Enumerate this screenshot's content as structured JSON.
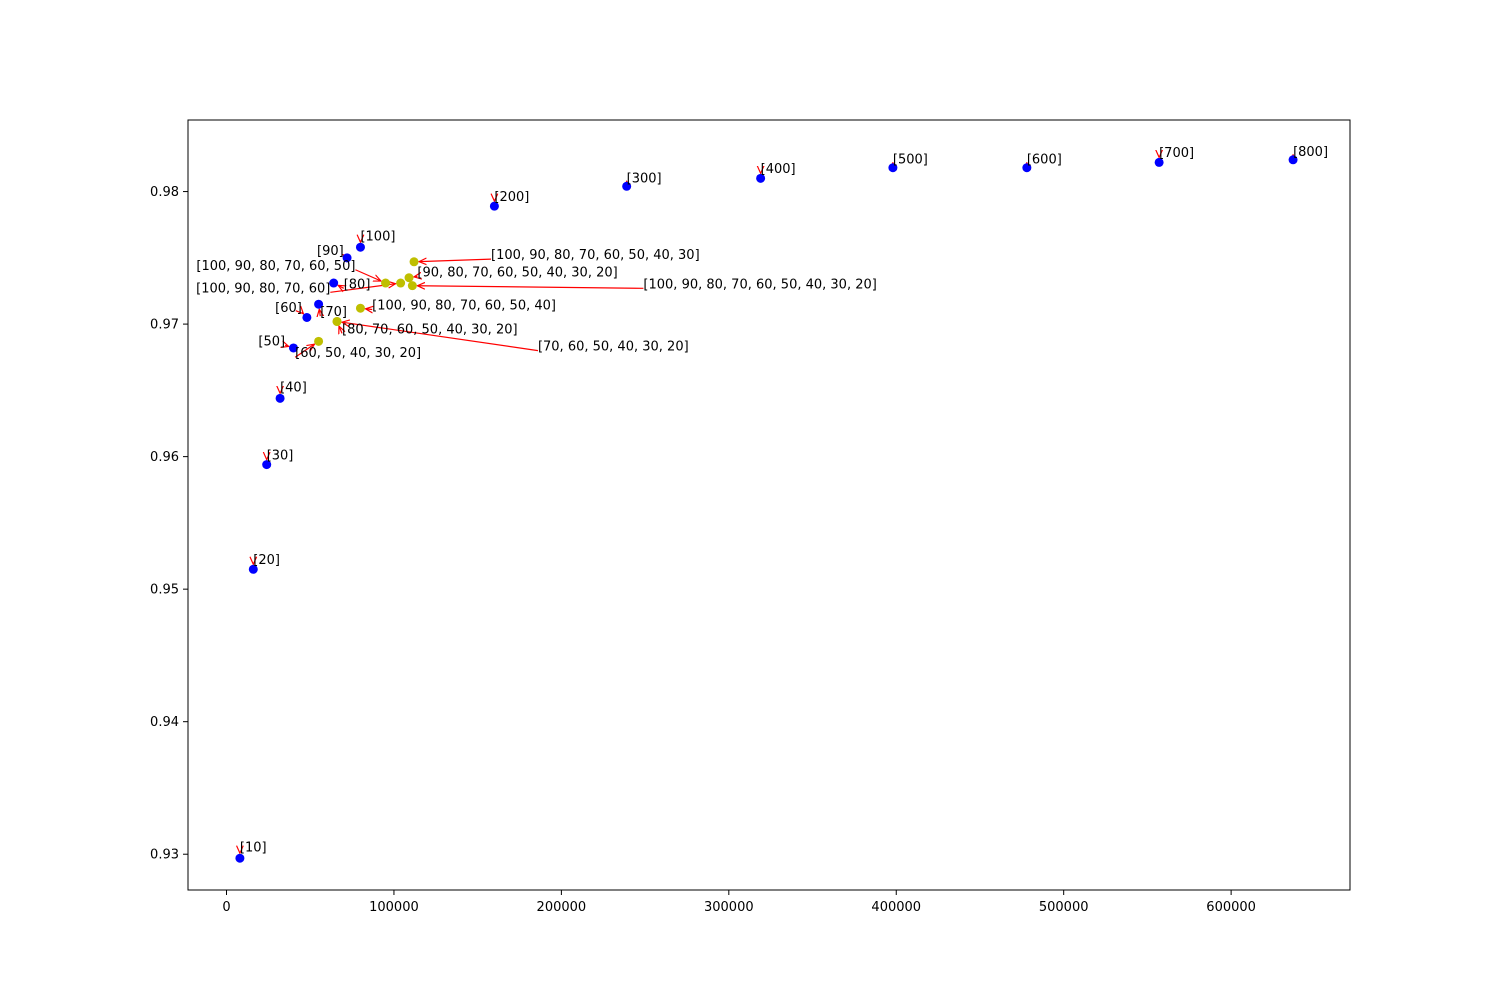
{
  "chart_data": {
    "type": "scatter",
    "title": "",
    "xlabel": "",
    "ylabel": "",
    "xlim": [
      -23000,
      671000
    ],
    "ylim": [
      0.9273,
      0.9854
    ],
    "xticks": [
      0,
      100000,
      200000,
      300000,
      400000,
      500000,
      600000
    ],
    "yticks": [
      0.93,
      0.94,
      0.95,
      0.96,
      0.97,
      0.98
    ],
    "grid": false,
    "legend": "none",
    "annotation_arrow_color": "#ff0000",
    "series": [
      {
        "color": "#0000ff",
        "points": [
          {
            "x": 8000,
            "y": 0.9297,
            "label": "[10]",
            "tx": 8000,
            "ty": 0.9302,
            "ha": "left"
          },
          {
            "x": 16000,
            "y": 0.9515,
            "label": "[20]",
            "tx": 16000,
            "ty": 0.9519,
            "ha": "left"
          },
          {
            "x": 24000,
            "y": 0.9594,
            "label": "[30]",
            "tx": 24000,
            "ty": 0.9598,
            "ha": "left"
          },
          {
            "x": 32000,
            "y": 0.9644,
            "label": "[40]",
            "tx": 32000,
            "ty": 0.9649,
            "ha": "left"
          },
          {
            "x": 40000,
            "y": 0.9682,
            "label": "[50]",
            "tx": 35000,
            "ty": 0.9684,
            "ha": "right"
          },
          {
            "x": 48000,
            "y": 0.9705,
            "label": "[60]",
            "tx": 45000,
            "ty": 0.9709,
            "ha": "right"
          },
          {
            "x": 55000,
            "y": 0.9715,
            "label": "[70]",
            "tx": 56000,
            "ty": 0.9706,
            "ha": "left"
          },
          {
            "x": 64000,
            "y": 0.9731,
            "label": "[80]",
            "tx": 70000,
            "ty": 0.9727,
            "ha": "left"
          },
          {
            "x": 72000,
            "y": 0.975,
            "label": "[90]",
            "tx": 70000,
            "ty": 0.9752,
            "ha": "right"
          },
          {
            "x": 80000,
            "y": 0.9758,
            "label": "[100]",
            "tx": 80000,
            "ty": 0.9763,
            "ha": "left"
          },
          {
            "x": 160000,
            "y": 0.9789,
            "label": "[200]",
            "tx": 160000,
            "ty": 0.9793,
            "ha": "left"
          },
          {
            "x": 239000,
            "y": 0.9804,
            "label": "[300]",
            "tx": 239000,
            "ty": 0.9807,
            "ha": "left"
          },
          {
            "x": 319000,
            "y": 0.981,
            "label": "[400]",
            "tx": 319000,
            "ty": 0.9814,
            "ha": "left"
          },
          {
            "x": 398000,
            "y": 0.9818,
            "label": "[500]",
            "tx": 398000,
            "ty": 0.9821,
            "ha": "left"
          },
          {
            "x": 478000,
            "y": 0.9818,
            "label": "[600]",
            "tx": 478000,
            "ty": 0.9821,
            "ha": "left"
          },
          {
            "x": 557000,
            "y": 0.9822,
            "label": "[700]",
            "tx": 557000,
            "ty": 0.9826,
            "ha": "left"
          },
          {
            "x": 637000,
            "y": 0.9824,
            "label": "[800]",
            "tx": 637000,
            "ty": 0.9827,
            "ha": "left"
          }
        ]
      },
      {
        "color": "#bfbf00",
        "points": [
          {
            "x": 112000,
            "y": 0.9747,
            "label": "[100, 90, 80, 70, 60, 50, 40, 30]",
            "tx": 158000,
            "ty": 0.9749,
            "ha": "left"
          },
          {
            "x": 109000,
            "y": 0.9735,
            "label": "[90, 80, 70, 60, 50, 40, 30, 20]",
            "tx": 114000,
            "ty": 0.9736,
            "ha": "left"
          },
          {
            "x": 95000,
            "y": 0.9731,
            "label": "[100, 90, 80, 70, 60, 50]",
            "tx": 77000,
            "ty": 0.9741,
            "ha": "right"
          },
          {
            "x": 104000,
            "y": 0.9731,
            "label": "[100, 90, 80, 70, 60]",
            "tx": 62000,
            "ty": 0.9724,
            "ha": "right"
          },
          {
            "x": 111000,
            "y": 0.9729,
            "label": "[100, 90, 80, 70, 60, 50, 40, 30, 20]",
            "tx": 249000,
            "ty": 0.9727,
            "ha": "left"
          },
          {
            "x": 80000,
            "y": 0.9712,
            "label": "[100, 90, 80, 70, 60, 50, 40]",
            "tx": 87000,
            "ty": 0.9711,
            "ha": "left"
          },
          {
            "x": 66000,
            "y": 0.9702,
            "label": "[80, 70, 60, 50, 40, 30, 20]",
            "tx": 69000,
            "ty": 0.9693,
            "ha": "left"
          },
          {
            "x": 55000,
            "y": 0.9687,
            "label": "[60, 50, 40, 30, 20]",
            "tx": 41000,
            "ty": 0.9675,
            "ha": "left"
          },
          {
            "x": 66000,
            "y": 0.9702,
            "label": "[70, 60, 50, 40, 30, 20]",
            "tx": 186000,
            "ty": 0.968,
            "ha": "left"
          }
        ]
      }
    ]
  }
}
